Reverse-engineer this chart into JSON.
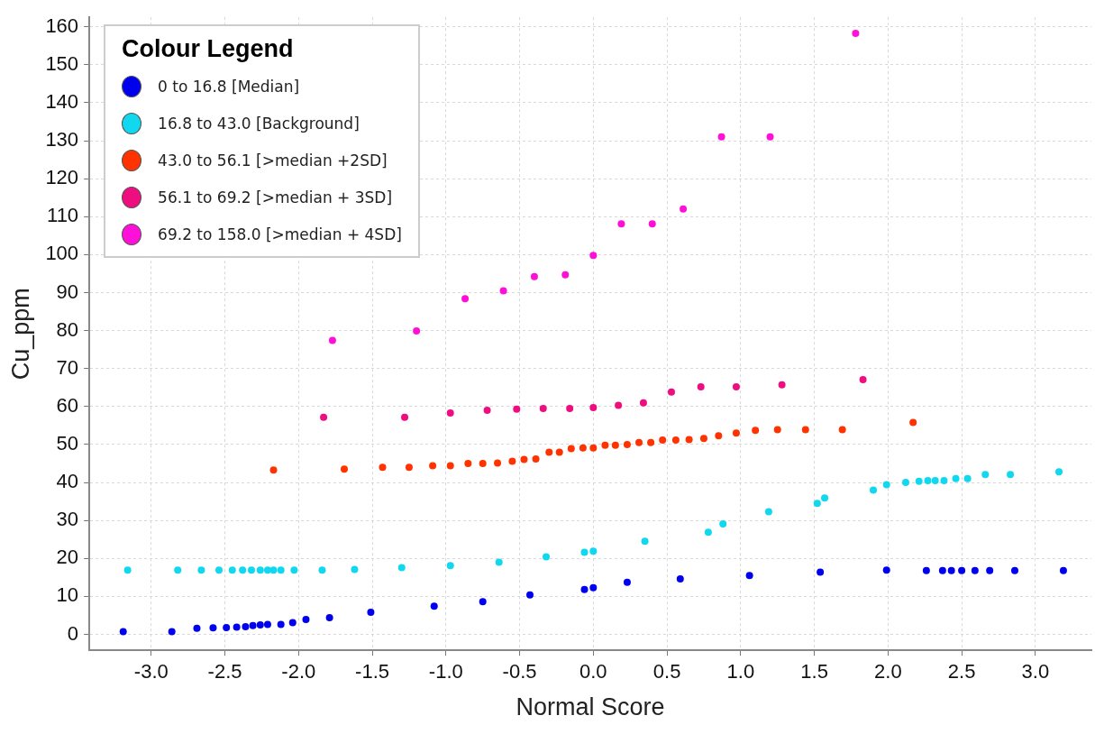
{
  "chart_data": {
    "type": "scatter",
    "xlabel": "Normal Score",
    "ylabel": "Cu_ppm",
    "legend_title": "Colour Legend",
    "legend": "top left",
    "grid": true,
    "marker": "circle",
    "xlim": [
      -3.42,
      3.38
    ],
    "xticks": [
      {
        "value": -3,
        "label": "-3.0"
      },
      {
        "value": -2.5,
        "label": "-2.5"
      },
      {
        "value": -2,
        "label": "-2.0"
      },
      {
        "value": -1.5,
        "label": "-1.5"
      },
      {
        "value": -1,
        "label": "-1.0"
      },
      {
        "value": -0.5,
        "label": "-0.5"
      },
      {
        "value": 0,
        "label": "0.0"
      },
      {
        "value": 0.5,
        "label": "0.5"
      },
      {
        "value": 1,
        "label": "1.0"
      },
      {
        "value": 1.5,
        "label": "1.5"
      },
      {
        "value": 2,
        "label": "2.0"
      },
      {
        "value": 2.5,
        "label": "2.5"
      },
      {
        "value": 3,
        "label": "3.0"
      }
    ],
    "ylim": [
      -4.2,
      162.5
    ],
    "yticks": [
      0,
      10,
      20,
      30,
      40,
      50,
      60,
      70,
      80,
      90,
      100,
      110,
      120,
      130,
      140,
      150,
      160
    ],
    "series": [
      {
        "name": "0 to 16.8 [Median]",
        "color": "#0000ee",
        "x": [
          -3.19,
          -2.86,
          -2.69,
          -2.58,
          -2.49,
          -2.42,
          -2.36,
          -2.31,
          -2.26,
          -2.21,
          -2.12,
          -2.04,
          -1.95,
          -1.79,
          -1.51,
          -1.08,
          -0.75,
          -0.43,
          -0.06,
          0,
          0.23,
          0.59,
          1.06,
          1.54,
          1.99,
          2.26,
          2.37,
          2.43,
          2.5,
          2.59,
          2.69,
          2.86,
          3.19
        ],
        "values": [
          0.7,
          0.7,
          1.6,
          1.7,
          1.8,
          1.9,
          2,
          2.3,
          2.5,
          2.6,
          2.6,
          3.1,
          3.9,
          4.4,
          5.8,
          7.4,
          8.6,
          10.4,
          11.8,
          12.3,
          13.7,
          14.6,
          15.5,
          16.4,
          16.9,
          16.8,
          16.8,
          16.8,
          16.8,
          16.8,
          16.8,
          16.8,
          16.8
        ]
      },
      {
        "name": "16.8 to 43.0 [Background]",
        "color": "#11d8ee",
        "x": [
          -3.16,
          -2.82,
          -2.66,
          -2.54,
          -2.45,
          -2.38,
          -2.32,
          -2.26,
          -2.21,
          -2.17,
          -2.12,
          -2.03,
          -1.84,
          -1.62,
          -1.3,
          -0.97,
          -0.64,
          -0.32,
          -0.06,
          0,
          0.35,
          0.78,
          0.88,
          1.19,
          1.52,
          1.57,
          1.9,
          1.99,
          2.12,
          2.21,
          2.27,
          2.32,
          2.38,
          2.46,
          2.54,
          2.66,
          2.83,
          3.16
        ],
        "values": [
          16.9,
          16.9,
          16.9,
          16.9,
          16.9,
          16.9,
          16.9,
          16.9,
          16.9,
          16.9,
          16.9,
          16.9,
          16.9,
          17.1,
          17.6,
          18.1,
          19,
          20.4,
          21.6,
          21.9,
          24.5,
          26.9,
          29.1,
          32.3,
          34.5,
          35.9,
          38,
          39.4,
          40,
          40.3,
          40.5,
          40.5,
          40.5,
          41,
          41,
          42.1,
          42.1,
          42.8
        ]
      },
      {
        "name": "43.0 to 56.1 [>median +2SD]",
        "color": "#ff3300",
        "x": [
          -2.17,
          -1.69,
          -1.43,
          -1.25,
          -1.09,
          -0.97,
          -0.85,
          -0.75,
          -0.65,
          -0.55,
          -0.47,
          -0.39,
          -0.3,
          -0.23,
          -0.15,
          -0.07,
          0,
          0.08,
          0.15,
          0.23,
          0.31,
          0.39,
          0.47,
          0.56,
          0.65,
          0.75,
          0.85,
          0.97,
          1.1,
          1.25,
          1.44,
          1.69,
          2.17
        ],
        "values": [
          43.3,
          43.5,
          44,
          44,
          44.4,
          44.4,
          45,
          45,
          45.1,
          45.6,
          46.1,
          46.2,
          48,
          48,
          48.9,
          49.1,
          49.1,
          49.8,
          49.8,
          50,
          50.5,
          50.5,
          51.2,
          51.2,
          51.3,
          51.6,
          52.3,
          53,
          53.7,
          53.9,
          53.9,
          53.9,
          55.8
        ]
      },
      {
        "name": "56.1 to 69.2 [>median + 3SD]",
        "color": "#ee0e80",
        "x": [
          -1.83,
          -1.28,
          -0.97,
          -0.72,
          -0.52,
          -0.34,
          -0.16,
          0,
          0.17,
          0.34,
          0.53,
          0.73,
          0.97,
          1.28,
          1.83
        ],
        "values": [
          57.2,
          57.2,
          58.3,
          59,
          59.3,
          59.5,
          59.5,
          59.7,
          60.3,
          61,
          63.8,
          65.2,
          65.2,
          65.7,
          67.1
        ]
      },
      {
        "name": "69.2 to 158.0 [>median + 4SD]",
        "color": "#ff10d8",
        "x": [
          -1.77,
          -1.2,
          -0.87,
          -0.61,
          -0.4,
          -0.19,
          0,
          0.19,
          0.4,
          0.61,
          0.87,
          1.2,
          1.78
        ],
        "values": [
          77.4,
          79.9,
          88.4,
          90.5,
          94.2,
          94.7,
          99.8,
          108.1,
          108.1,
          112,
          131,
          131,
          158.3
        ]
      }
    ]
  }
}
